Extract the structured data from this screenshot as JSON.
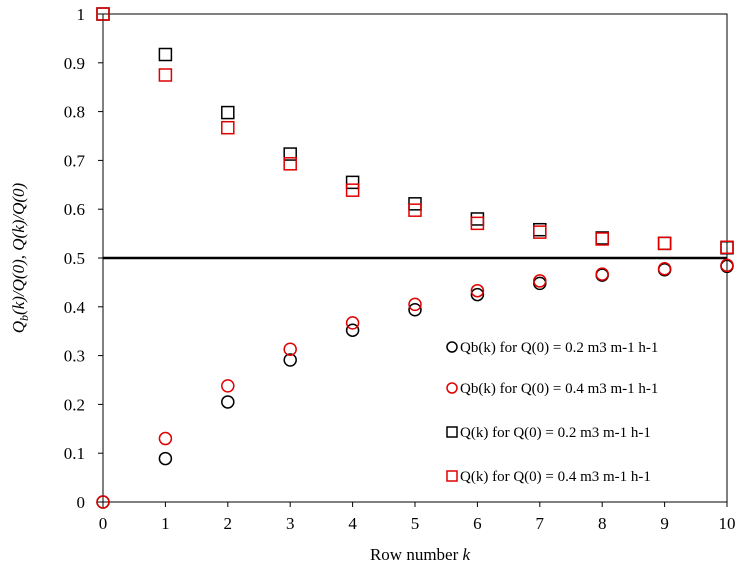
{
  "chart_data": {
    "type": "scatter",
    "xlabel_prefix": "Row number ",
    "xlabel_var": "k",
    "ylabel": "Q_b(k)/Q(0), Q(k)/Q(0)",
    "xlim": [
      0,
      10
    ],
    "ylim": [
      0,
      1
    ],
    "x_ticks": [
      "0",
      "1",
      "2",
      "3",
      "4",
      "5",
      "6",
      "7",
      "8",
      "9",
      "10"
    ],
    "y_ticks": [
      "0",
      "0.1",
      "0.2",
      "0.3",
      "0.4",
      "0.5",
      "0.6",
      "0.7",
      "0.8",
      "0.9",
      "1"
    ],
    "grid": false,
    "reference_line": {
      "y": 0.5
    },
    "x": [
      0,
      1,
      2,
      3,
      4,
      5,
      6,
      7,
      8,
      9,
      10
    ],
    "series": [
      {
        "name": "Qb(k) for Q(0) = 0.2 m3 m-1 h-1",
        "marker": "circle",
        "color": "#000000",
        "values": [
          0,
          0.089,
          0.205,
          0.291,
          0.352,
          0.394,
          0.425,
          0.448,
          0.465,
          0.476,
          0.483
        ]
      },
      {
        "name": "Qb(k) for Q(0) = 0.4 m3 m-1 h-1",
        "marker": "circle",
        "color": "#e00000",
        "values": [
          0,
          0.13,
          0.238,
          0.313,
          0.367,
          0.405,
          0.433,
          0.453,
          0.467,
          0.478,
          0.485
        ]
      },
      {
        "name": "Q(k) for Q(0) = 0.2 m3 m-1 h-1",
        "marker": "square",
        "color": "#000000",
        "values": [
          1,
          0.917,
          0.798,
          0.713,
          0.655,
          0.611,
          0.58,
          0.558,
          0.541,
          0.53,
          0.521
        ]
      },
      {
        "name": "Q(k) for Q(0) = 0.4 m3 m-1 h-1",
        "marker": "square",
        "color": "#e00000",
        "values": [
          1,
          0.875,
          0.767,
          0.693,
          0.639,
          0.598,
          0.571,
          0.553,
          0.539,
          0.53,
          0.522
        ]
      }
    ],
    "legend_position": "lower-right"
  }
}
